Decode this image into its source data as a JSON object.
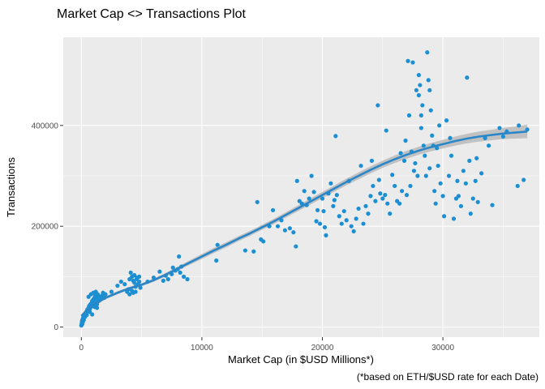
{
  "chart_data": {
    "type": "scatter",
    "title": "Market Cap <> Transactions Plot",
    "xlabel": "Market Cap (in $USD Millions*)",
    "ylabel": "Transactions",
    "caption": "(*based on ETH/$USD rate for each Date)",
    "xlim": [
      -1500,
      38000
    ],
    "ylim": [
      -20000,
      575000
    ],
    "xticks": [
      0,
      10000,
      20000,
      30000
    ],
    "yticks": [
      0,
      200000,
      400000
    ],
    "xtick_labels": [
      "0",
      "10000",
      "20000",
      "30000"
    ],
    "ytick_labels": [
      "0",
      "200000",
      "400000"
    ],
    "grid": true,
    "legend": "none",
    "colors": {
      "points": "#1b8fd2",
      "smooth": "#2b86c8",
      "band": "#bdbdbd",
      "panel": "#ebebeb",
      "grid": "#ffffff"
    },
    "points": [
      [
        0,
        3000
      ],
      [
        20,
        5000
      ],
      [
        40,
        8000
      ],
      [
        60,
        12000
      ],
      [
        80,
        6000
      ],
      [
        100,
        15000
      ],
      [
        120,
        10000
      ],
      [
        150,
        18000
      ],
      [
        180,
        22000
      ],
      [
        200,
        14000
      ],
      [
        250,
        25000
      ],
      [
        300,
        20000
      ],
      [
        350,
        28000
      ],
      [
        400,
        30000
      ],
      [
        450,
        24000
      ],
      [
        500,
        35000
      ],
      [
        550,
        32000
      ],
      [
        600,
        38000
      ],
      [
        650,
        42000
      ],
      [
        700,
        36000
      ],
      [
        750,
        45000
      ],
      [
        800,
        40000
      ],
      [
        850,
        48000
      ],
      [
        900,
        52000
      ],
      [
        950,
        46000
      ],
      [
        1000,
        55000
      ],
      [
        1050,
        50000
      ],
      [
        1100,
        58000
      ],
      [
        1150,
        62000
      ],
      [
        1200,
        54000
      ],
      [
        1250,
        60000
      ],
      [
        1300,
        45000
      ],
      [
        1350,
        65000
      ],
      [
        1400,
        58000
      ],
      [
        1450,
        52000
      ],
      [
        1500,
        60000
      ],
      [
        1600,
        55000
      ],
      [
        1700,
        62000
      ],
      [
        1800,
        68000
      ],
      [
        1900,
        58000
      ],
      [
        2000,
        65000
      ],
      [
        700,
        30000
      ],
      [
        900,
        25000
      ],
      [
        1100,
        40000
      ],
      [
        1300,
        38000
      ],
      [
        600,
        60000
      ],
      [
        800,
        65000
      ],
      [
        1000,
        68000
      ],
      [
        1200,
        70000
      ],
      [
        2500,
        70000
      ],
      [
        3000,
        82000
      ],
      [
        3300,
        90000
      ],
      [
        3600,
        85000
      ],
      [
        3900,
        75000
      ],
      [
        4000,
        95000
      ],
      [
        4100,
        108000
      ],
      [
        4200,
        100000
      ],
      [
        4300,
        92000
      ],
      [
        4400,
        88000
      ],
      [
        4500,
        80000
      ],
      [
        4600,
        98000
      ],
      [
        4700,
        85000
      ],
      [
        4800,
        90000
      ],
      [
        4900,
        78000
      ],
      [
        3800,
        70000
      ],
      [
        4000,
        65000
      ],
      [
        4200,
        72000
      ],
      [
        4400,
        103000
      ],
      [
        4600,
        95000
      ],
      [
        4800,
        100000
      ],
      [
        4500,
        70000
      ],
      [
        4300,
        68000
      ],
      [
        5500,
        90000
      ],
      [
        6000,
        98000
      ],
      [
        6500,
        110000
      ],
      [
        7000,
        102000
      ],
      [
        7200,
        95000
      ],
      [
        7500,
        105000
      ],
      [
        7800,
        112000
      ],
      [
        8000,
        115000
      ],
      [
        8100,
        140000
      ],
      [
        8300,
        120000
      ],
      [
        8500,
        100000
      ],
      [
        8800,
        95000
      ],
      [
        6800,
        92000
      ],
      [
        7600,
        118000
      ],
      [
        8200,
        108000
      ],
      [
        11200,
        132000
      ],
      [
        11300,
        163000
      ],
      [
        13600,
        152000
      ],
      [
        14300,
        150000
      ],
      [
        14600,
        248000
      ],
      [
        14900,
        174000
      ],
      [
        15100,
        170000
      ],
      [
        15600,
        200000
      ],
      [
        15900,
        232000
      ],
      [
        16300,
        200000
      ],
      [
        16600,
        212000
      ],
      [
        16900,
        192000
      ],
      [
        17300,
        196000
      ],
      [
        17600,
        188000
      ],
      [
        17800,
        160000
      ],
      [
        17900,
        290000
      ],
      [
        18100,
        250000
      ],
      [
        18300,
        245000
      ],
      [
        18500,
        270000
      ],
      [
        18700,
        242000
      ],
      [
        18900,
        255000
      ],
      [
        19100,
        300000
      ],
      [
        19300,
        268000
      ],
      [
        19500,
        210000
      ],
      [
        19600,
        232000
      ],
      [
        19800,
        205000
      ],
      [
        20000,
        255000
      ],
      [
        20100,
        230000
      ],
      [
        20200,
        198000
      ],
      [
        20300,
        182000
      ],
      [
        20500,
        265000
      ],
      [
        20700,
        285000
      ],
      [
        20900,
        240000
      ],
      [
        21000,
        252000
      ],
      [
        21100,
        379000
      ],
      [
        21200,
        262000
      ],
      [
        21400,
        220000
      ],
      [
        21600,
        205000
      ],
      [
        21800,
        230000
      ],
      [
        22000,
        212000
      ],
      [
        22200,
        290000
      ],
      [
        22400,
        200000
      ],
      [
        22600,
        190000
      ],
      [
        22800,
        215000
      ],
      [
        23000,
        235000
      ],
      [
        23200,
        320000
      ],
      [
        23400,
        205000
      ],
      [
        23600,
        240000
      ],
      [
        23800,
        225000
      ],
      [
        24000,
        260000
      ],
      [
        24200,
        280000
      ],
      [
        24400,
        250000
      ],
      [
        24600,
        440000
      ],
      [
        24700,
        292000
      ],
      [
        24800,
        265000
      ],
      [
        25000,
        255000
      ],
      [
        25200,
        262000
      ],
      [
        25400,
        245000
      ],
      [
        25600,
        225000
      ],
      [
        25800,
        302000
      ],
      [
        26000,
        280000
      ],
      [
        26200,
        250000
      ],
      [
        26400,
        245000
      ],
      [
        26600,
        270000
      ],
      [
        26800,
        330000
      ],
      [
        27000,
        262000
      ],
      [
        27100,
        528000
      ],
      [
        27300,
        280000
      ],
      [
        27500,
        525000
      ],
      [
        27600,
        310000
      ],
      [
        27800,
        470000
      ],
      [
        27900,
        300000
      ],
      [
        28000,
        500000
      ],
      [
        28100,
        480000
      ],
      [
        28200,
        420000
      ],
      [
        28300,
        440000
      ],
      [
        28400,
        360000
      ],
      [
        28500,
        340000
      ],
      [
        28600,
        300000
      ],
      [
        28700,
        545000
      ],
      [
        28800,
        490000
      ],
      [
        28900,
        470000
      ],
      [
        29000,
        430000
      ],
      [
        29100,
        380000
      ],
      [
        29200,
        360000
      ],
      [
        29300,
        270000
      ],
      [
        29400,
        245000
      ],
      [
        29600,
        320000
      ],
      [
        29800,
        285000
      ],
      [
        30000,
        260000
      ],
      [
        30100,
        220000
      ],
      [
        30300,
        410000
      ],
      [
        30500,
        300000
      ],
      [
        30700,
        340000
      ],
      [
        30900,
        215000
      ],
      [
        31100,
        255000
      ],
      [
        31300,
        260000
      ],
      [
        31500,
        240000
      ],
      [
        31700,
        310000
      ],
      [
        31900,
        285000
      ],
      [
        32000,
        495000
      ],
      [
        32200,
        330000
      ],
      [
        32300,
        225000
      ],
      [
        32500,
        255000
      ],
      [
        32700,
        290000
      ],
      [
        32900,
        248000
      ],
      [
        33200,
        305000
      ],
      [
        33500,
        375000
      ],
      [
        34100,
        242000
      ],
      [
        34700,
        395000
      ],
      [
        35300,
        388000
      ],
      [
        36200,
        280000
      ],
      [
        36700,
        292000
      ],
      [
        37000,
        392000
      ],
      [
        26500,
        345000
      ],
      [
        27700,
        325000
      ],
      [
        28200,
        395000
      ],
      [
        28900,
        315000
      ],
      [
        29500,
        355000
      ],
      [
        27200,
        420000
      ],
      [
        28000,
        460000
      ],
      [
        26900,
        370000
      ],
      [
        25300,
        390000
      ],
      [
        24100,
        330000
      ],
      [
        27400,
        348000
      ],
      [
        29700,
        400000
      ],
      [
        30600,
        375000
      ],
      [
        31200,
        290000
      ],
      [
        32800,
        335000
      ],
      [
        33800,
        360000
      ],
      [
        35000,
        378000
      ],
      [
        36300,
        400000
      ]
    ],
    "smooth": [
      [
        0,
        22000
      ],
      [
        1000,
        44000
      ],
      [
        2000,
        58000
      ],
      [
        3000,
        68000
      ],
      [
        4000,
        77000
      ],
      [
        5000,
        84000
      ],
      [
        6000,
        93000
      ],
      [
        7000,
        104000
      ],
      [
        8000,
        116000
      ],
      [
        9000,
        128000
      ],
      [
        10000,
        140000
      ],
      [
        11000,
        152000
      ],
      [
        12000,
        163000
      ],
      [
        13000,
        175000
      ],
      [
        14000,
        186000
      ],
      [
        15000,
        198000
      ],
      [
        16000,
        210000
      ],
      [
        17000,
        223000
      ],
      [
        18000,
        236000
      ],
      [
        19000,
        249000
      ],
      [
        20000,
        262000
      ],
      [
        21000,
        275000
      ],
      [
        22000,
        288000
      ],
      [
        23000,
        300000
      ],
      [
        24000,
        312000
      ],
      [
        25000,
        323000
      ],
      [
        26000,
        333000
      ],
      [
        27000,
        342000
      ],
      [
        28000,
        350000
      ],
      [
        29000,
        357000
      ],
      [
        30000,
        363000
      ],
      [
        31000,
        369000
      ],
      [
        32000,
        374000
      ],
      [
        33000,
        378000
      ],
      [
        34000,
        381000
      ],
      [
        35000,
        384000
      ],
      [
        36000,
        386000
      ],
      [
        37000,
        388000
      ]
    ],
    "band_halfwidth": [
      4000,
      3500,
      3000,
      3000,
      3000,
      3000,
      3200,
      3500,
      4000,
      4500,
      5000,
      5200,
      5200,
      5000,
      5000,
      5000,
      5200,
      5500,
      5800,
      6000,
      6200,
      6400,
      6600,
      6800,
      7000,
      7200,
      7500,
      7800,
      8000,
      8300,
      8600,
      9000,
      9500,
      10000,
      10500,
      11000,
      12000,
      13500
    ]
  }
}
